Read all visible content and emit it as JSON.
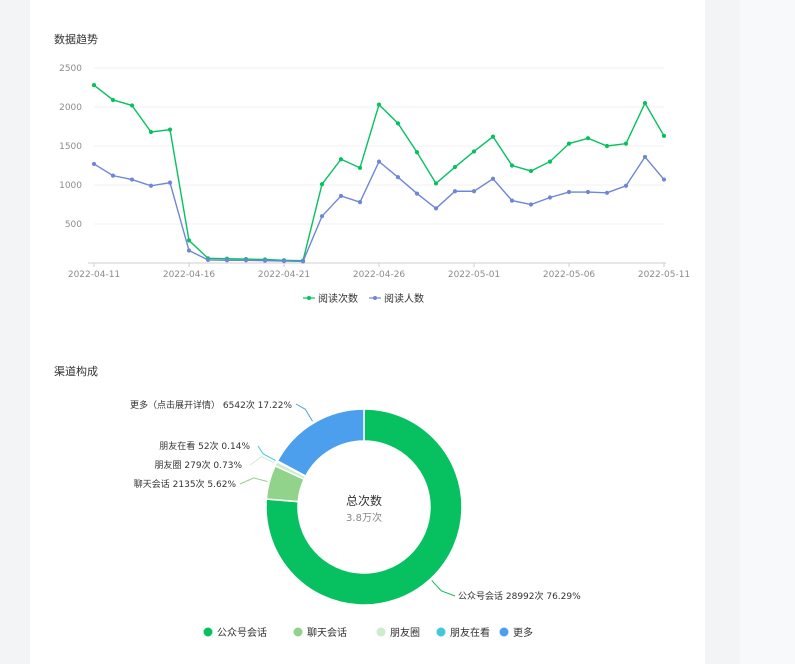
{
  "trend_section": {
    "title": "数据趋势"
  },
  "channel_section": {
    "title": "渠道构成"
  },
  "chart_data": [
    {
      "type": "line",
      "title": "数据趋势",
      "ylim": [
        0,
        2500
      ],
      "yticks": [
        500,
        1000,
        1500,
        2000,
        2500
      ],
      "xtick_labels": [
        "2022-04-11",
        "2022-04-16",
        "2022-04-21",
        "2022-04-26",
        "2022-05-01",
        "2022-05-06",
        "2022-05-11"
      ],
      "x": [
        "2022-04-11",
        "2022-04-12",
        "2022-04-13",
        "2022-04-14",
        "2022-04-15",
        "2022-04-16",
        "2022-04-17",
        "2022-04-18",
        "2022-04-19",
        "2022-04-20",
        "2022-04-21",
        "2022-04-22",
        "2022-04-23",
        "2022-04-24",
        "2022-04-25",
        "2022-04-26",
        "2022-04-27",
        "2022-04-28",
        "2022-04-29",
        "2022-04-30",
        "2022-05-01",
        "2022-05-02",
        "2022-05-03",
        "2022-05-04",
        "2022-05-05",
        "2022-05-06",
        "2022-05-07",
        "2022-05-08",
        "2022-05-09",
        "2022-05-10",
        "2022-05-11"
      ],
      "series": [
        {
          "name": "阅读次数",
          "color": "#07c160",
          "values": [
            2280,
            2090,
            2020,
            1680,
            1710,
            290,
            60,
            55,
            50,
            45,
            35,
            30,
            1010,
            1330,
            1220,
            2030,
            1790,
            1420,
            1020,
            1230,
            1430,
            1620,
            1250,
            1180,
            1300,
            1530,
            1600,
            1500,
            1530,
            2050,
            1630
          ]
        },
        {
          "name": "阅读人数",
          "color": "#6f86d6",
          "values": [
            1270,
            1120,
            1070,
            990,
            1030,
            160,
            40,
            35,
            35,
            30,
            25,
            20,
            600,
            860,
            780,
            1300,
            1100,
            890,
            700,
            920,
            920,
            1080,
            800,
            750,
            840,
            910,
            910,
            900,
            990,
            1360,
            1070
          ]
        }
      ],
      "legend": "bottom"
    },
    {
      "type": "pie",
      "title": "渠道构成",
      "center_title": "总次数",
      "center_value": "3.8万次",
      "slices": [
        {
          "name": "公众号会话",
          "value": 28992,
          "percent": 76.29,
          "color": "#07c160",
          "label": "公众号会话 28992次 76.29%"
        },
        {
          "name": "聊天会话",
          "value": 2135,
          "percent": 5.62,
          "color": "#91d38a",
          "label": "聊天会话 2135次 5.62%"
        },
        {
          "name": "朋友圈",
          "value": 279,
          "percent": 0.73,
          "color": "#cdeccc",
          "label": "朋友圈 279次 0.73%"
        },
        {
          "name": "朋友在看",
          "value": 52,
          "percent": 0.14,
          "color": "#41c7dc",
          "label": "朋友在看 52次 0.14%"
        },
        {
          "name": "更多",
          "value": 6542,
          "percent": 17.22,
          "color": "#4b9fec",
          "label": "更多（点击展开详情） 6542次 17.22%"
        }
      ],
      "legend": "bottom"
    }
  ]
}
